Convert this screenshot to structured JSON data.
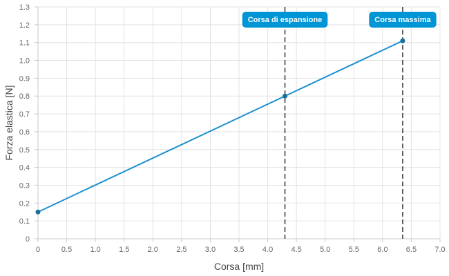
{
  "chart_data": {
    "type": "line",
    "title": "",
    "xlabel": "Corsa [mm]",
    "ylabel": "Forza elastica [N]",
    "xlim": [
      0,
      7.0
    ],
    "ylim": [
      0,
      1.3
    ],
    "x_ticks": [
      0,
      0.5,
      1.0,
      1.5,
      2.0,
      2.5,
      3.0,
      3.5,
      4.0,
      4.5,
      5.0,
      5.5,
      6.0,
      6.5,
      7.0
    ],
    "x_tick_labels": [
      "0",
      "0.5",
      "1.0",
      "1.5",
      "2.0",
      "2.5",
      "3.0",
      "3.5",
      "4.0",
      "4.5",
      "5.0",
      "5.5",
      "6.0",
      "6.5",
      "7.0"
    ],
    "y_ticks": [
      0,
      0.1,
      0.2,
      0.3,
      0.4,
      0.5,
      0.6,
      0.7,
      0.8,
      0.9,
      1.0,
      1.1,
      1.2,
      1.3
    ],
    "y_tick_labels": [
      "0",
      "0.1",
      "0.2",
      "0.3",
      "0.4",
      "0.5",
      "0.6",
      "0.7",
      "0.8",
      "0.9",
      "1.0",
      "1.1",
      "1.2",
      "1.3"
    ],
    "grid": true,
    "legend": "none",
    "series": [
      {
        "x": [
          0,
          4.3,
          6.35
        ],
        "y": [
          0.15,
          0.8,
          1.11
        ],
        "color": "#1a8fd0"
      }
    ],
    "annotations": [
      {
        "label": "Corsa di espansione",
        "x": 4.3
      },
      {
        "label": "Corsa massima",
        "x": 6.35
      }
    ],
    "annotation_color": "#0096d6"
  }
}
